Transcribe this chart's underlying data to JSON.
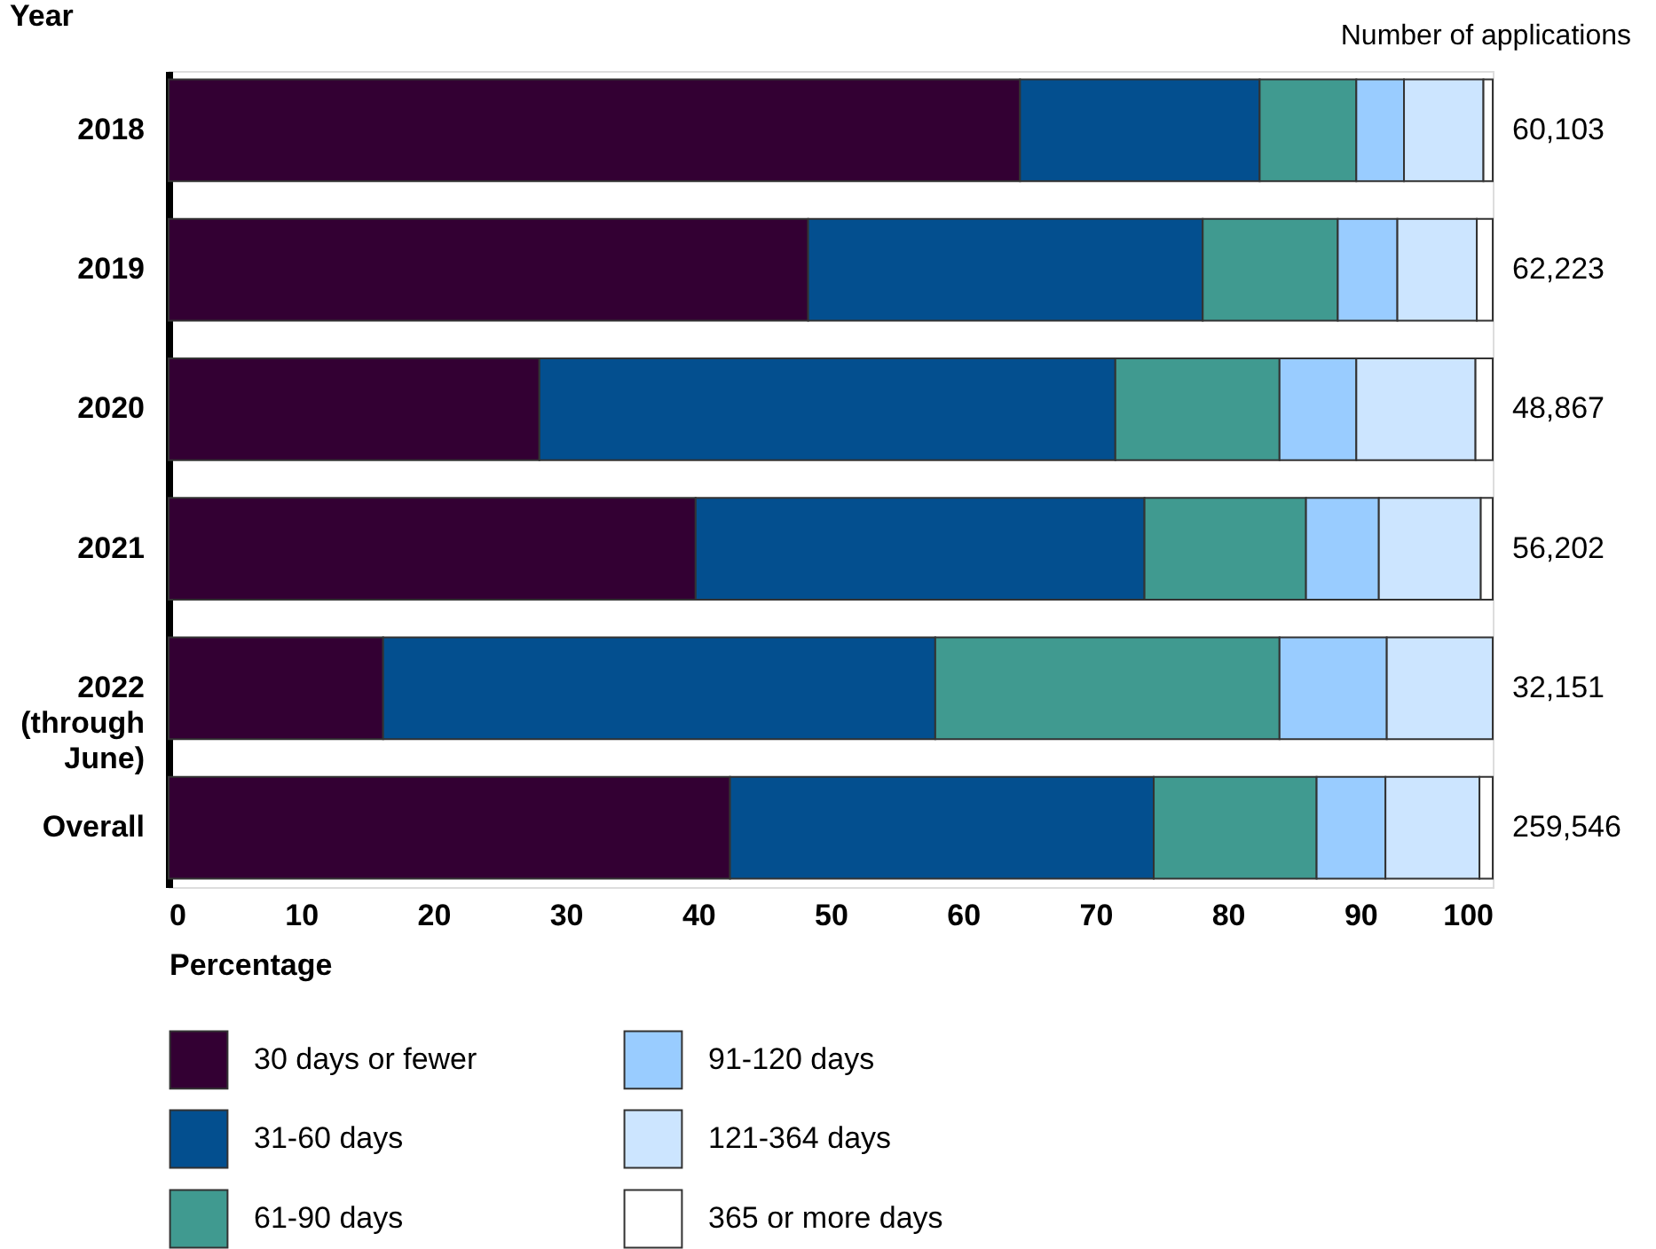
{
  "chart_data": {
    "type": "bar",
    "orientation": "horizontal",
    "stacked": true,
    "ylabel": "Year",
    "xlabel": "Percentage",
    "categories": [
      "2018",
      "2019",
      "2020",
      "2021",
      "2022 (through June)",
      "Overall"
    ],
    "series": [
      {
        "name": "30 days or fewer",
        "color": "#330033",
        "values": [
          64.3,
          48.3,
          28.0,
          39.8,
          16.2,
          42.4
        ]
      },
      {
        "name": "31-60 days",
        "color": "#034f8f",
        "values": [
          18.1,
          29.8,
          43.5,
          33.9,
          41.7,
          32.0
        ]
      },
      {
        "name": "61-90 days",
        "color": "#409a90",
        "values": [
          7.3,
          10.2,
          12.4,
          12.2,
          26.0,
          12.3
        ]
      },
      {
        "name": "91-120 days",
        "color": "#99ccff",
        "values": [
          3.6,
          4.5,
          5.8,
          5.5,
          8.1,
          5.2
        ]
      },
      {
        "name": "121-364 days",
        "color": "#cce5ff",
        "values": [
          6.0,
          6.0,
          9.0,
          7.7,
          8.0,
          7.1
        ]
      },
      {
        "name": "365 or more days",
        "color": "#ffffff",
        "values": [
          0.7,
          1.2,
          1.3,
          0.9,
          null,
          1.0
        ]
      }
    ],
    "annotations": [
      "Number of applications",
      "60,103",
      "62,223",
      "48,867",
      "56,202",
      "32,151",
      "259,546"
    ],
    "xlim": [
      0,
      100
    ],
    "xticks": [
      0,
      10,
      20,
      30,
      40,
      50,
      60,
      70,
      80,
      90,
      100
    ],
    "grid": false,
    "legend": "bottom"
  }
}
